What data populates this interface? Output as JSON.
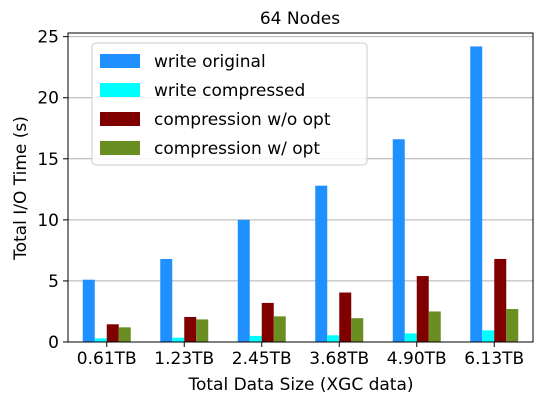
{
  "chart_data": {
    "type": "bar",
    "title": "64 Nodes",
    "xlabel": "Total Data Size (XGC data)",
    "ylabel": "Total I/O Time (s)",
    "categories": [
      "0.61TB",
      "1.23TB",
      "2.45TB",
      "3.68TB",
      "4.90TB",
      "6.13TB"
    ],
    "ylim": [
      0,
      25.3
    ],
    "yticks": [
      0,
      5,
      10,
      15,
      20,
      25
    ],
    "grid": "horizontal",
    "legend_position": "top-left",
    "series": [
      {
        "name": "write original",
        "color": "#1e90ff",
        "values": [
          5.1,
          6.8,
          10.0,
          12.8,
          16.6,
          24.2
        ]
      },
      {
        "name": "write compressed",
        "color": "#00ffff",
        "values": [
          0.3,
          0.35,
          0.5,
          0.55,
          0.7,
          0.95
        ]
      },
      {
        "name": "compression w/o opt",
        "color": "#800000",
        "values": [
          1.45,
          2.05,
          3.2,
          4.05,
          5.4,
          6.8
        ]
      },
      {
        "name": "compression w/ opt",
        "color": "#6b8e23",
        "values": [
          1.2,
          1.85,
          2.1,
          1.95,
          2.5,
          2.7
        ]
      }
    ]
  }
}
